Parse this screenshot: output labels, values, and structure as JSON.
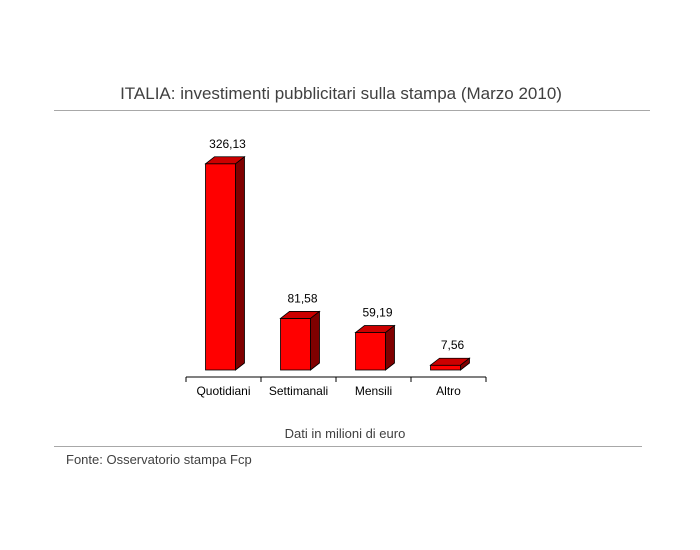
{
  "chart_data": {
    "type": "bar",
    "title": "ITALIA: investimenti pubblicitari sulla stampa (Marzo 2010)",
    "categories": [
      "Quotidiani",
      "Settimanali",
      "Mensili",
      "Altro"
    ],
    "values": [
      326.13,
      81.58,
      59.19,
      7.56
    ],
    "value_labels": [
      "326,13",
      "81,58",
      "59,19",
      "7,56"
    ],
    "xlabel": "Dati in milioni di euro",
    "ylabel": "",
    "ylim": [
      0,
      340
    ],
    "grid": false,
    "legend": "none",
    "bar_style": "3d",
    "colors": {
      "bar_front": "#ff0000",
      "bar_top": "#cc0000",
      "bar_side": "#800000"
    }
  },
  "footer": {
    "source": "Fonte: Osservatorio stampa Fcp"
  }
}
